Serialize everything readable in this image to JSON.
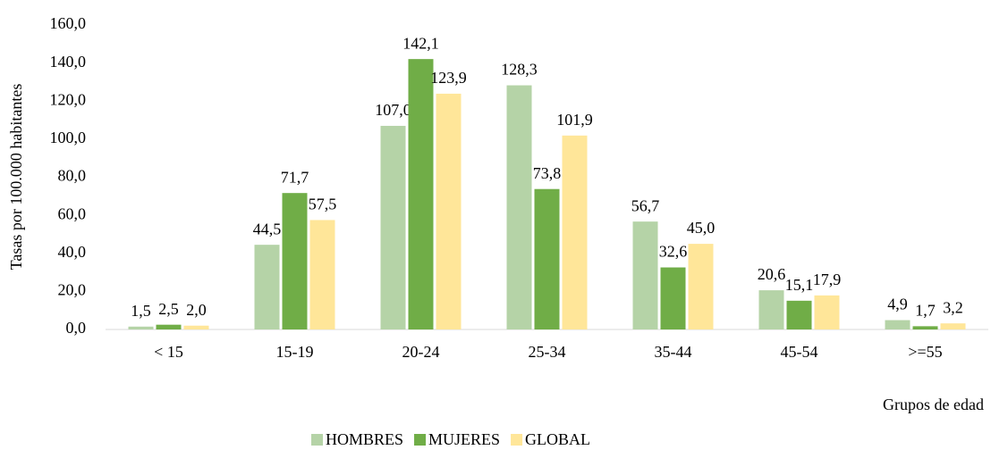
{
  "chart_data": {
    "type": "bar",
    "categories": [
      "< 15",
      "15-19",
      "20-24",
      "25-34",
      "35-44",
      "45-54",
      ">=55"
    ],
    "series": [
      {
        "name": "HOMBRES",
        "color": "#b5d3a7",
        "values": [
          1.5,
          44.5,
          107.0,
          128.3,
          56.7,
          20.6,
          4.9
        ],
        "value_labels": [
          "1,5",
          "44,5",
          "107,0",
          "128,3",
          "56,7",
          "20,6",
          "4,9"
        ]
      },
      {
        "name": "MUJERES",
        "color": "#70ad47",
        "values": [
          2.5,
          71.7,
          142.1,
          73.8,
          32.6,
          15.1,
          1.7
        ],
        "value_labels": [
          "2,5",
          "71,7",
          "142,1",
          "73,8",
          "32,6",
          "15,1",
          "1,7"
        ]
      },
      {
        "name": "GLOBAL",
        "color": "#ffe699",
        "values": [
          2.0,
          57.5,
          123.9,
          101.9,
          45.0,
          17.9,
          3.2
        ],
        "value_labels": [
          "2,0",
          "57,5",
          "123,9",
          "101,9",
          "45,0",
          "17,9",
          "3,2"
        ]
      }
    ],
    "ylabel": "Tasas por 100.000 habitantes",
    "xlabel": "Grupos de edad",
    "ylim": [
      0,
      160
    ],
    "yticks": [
      {
        "value": 0,
        "label": "0,0"
      },
      {
        "value": 20,
        "label": "20,0"
      },
      {
        "value": 40,
        "label": "40,0"
      },
      {
        "value": 60,
        "label": "60,0"
      },
      {
        "value": 80,
        "label": "80,0"
      },
      {
        "value": 100,
        "label": "100,0"
      },
      {
        "value": 120,
        "label": "120,0"
      },
      {
        "value": 140,
        "label": "140,0"
      },
      {
        "value": 160,
        "label": "160,0"
      }
    ],
    "grid": false,
    "legend": "bottom"
  }
}
